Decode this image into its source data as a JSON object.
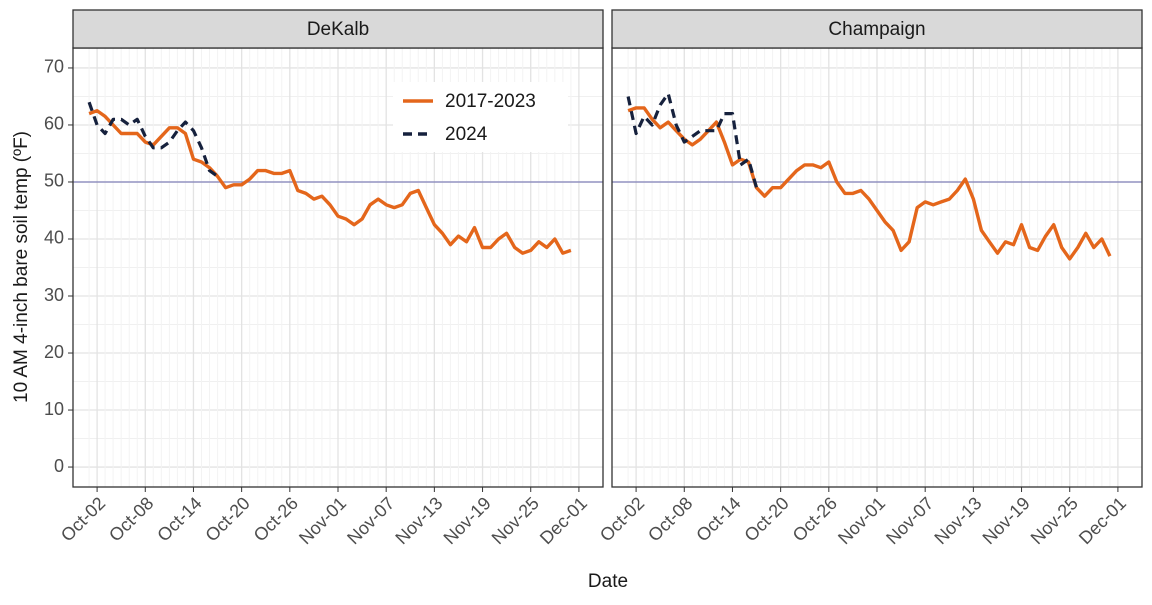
{
  "axis_labels": {
    "x": "Date",
    "y": "10 AM 4-inch bare soil temp (ºF)"
  },
  "chart_data": [
    {
      "type": "line",
      "title": "DeKalb",
      "x": [
        "Oct-01",
        "Oct-02",
        "Oct-03",
        "Oct-04",
        "Oct-05",
        "Oct-06",
        "Oct-07",
        "Oct-08",
        "Oct-09",
        "Oct-10",
        "Oct-11",
        "Oct-12",
        "Oct-13",
        "Oct-14",
        "Oct-15",
        "Oct-16",
        "Oct-17",
        "Oct-18",
        "Oct-19",
        "Oct-20",
        "Oct-21",
        "Oct-22",
        "Oct-23",
        "Oct-24",
        "Oct-25",
        "Oct-26",
        "Oct-27",
        "Oct-28",
        "Oct-29",
        "Oct-30",
        "Oct-31",
        "Nov-01",
        "Nov-02",
        "Nov-03",
        "Nov-04",
        "Nov-05",
        "Nov-06",
        "Nov-07",
        "Nov-08",
        "Nov-09",
        "Nov-10",
        "Nov-11",
        "Nov-12",
        "Nov-13",
        "Nov-14",
        "Nov-15",
        "Nov-16",
        "Nov-17",
        "Nov-18",
        "Nov-19",
        "Nov-20",
        "Nov-21",
        "Nov-22",
        "Nov-23",
        "Nov-24",
        "Nov-25",
        "Nov-26",
        "Nov-27",
        "Nov-28",
        "Nov-29",
        "Nov-30"
      ],
      "series": [
        {
          "name": "2017-2023",
          "color": "#e4661b",
          "dash": false,
          "values": [
            62,
            62.5,
            61.5,
            60,
            58.5,
            58.5,
            58.5,
            57,
            56.5,
            58,
            59.5,
            59.5,
            58.5,
            54,
            53.5,
            52.5,
            51,
            49,
            49.5,
            49.5,
            50.5,
            52,
            52,
            51.5,
            51.5,
            52,
            48.5,
            48,
            47,
            47.5,
            46,
            44,
            43.5,
            42.5,
            43.5,
            46,
            47,
            46,
            45.5,
            46,
            48,
            48.5,
            45.5,
            42.5,
            41,
            39,
            40.5,
            39.5,
            42,
            38.5,
            38.5,
            40,
            41,
            38.5,
            37.5,
            38,
            39.5,
            38.5,
            40,
            37.5,
            38
          ]
        },
        {
          "name": "2024",
          "color": "#16213d",
          "dash": true,
          "values": [
            64,
            60,
            58.5,
            61,
            61,
            60,
            61,
            58,
            56,
            56,
            57,
            59,
            60.5,
            59,
            56,
            52,
            51,
            null,
            null,
            null,
            null,
            null,
            null,
            null,
            null,
            null,
            null,
            null,
            null,
            null,
            null,
            null,
            null,
            null,
            null,
            null,
            null,
            null,
            null,
            null,
            null,
            null,
            null,
            null,
            null,
            null,
            null,
            null,
            null,
            null,
            null,
            null,
            null,
            null,
            null,
            null,
            null,
            null,
            null,
            null,
            null
          ]
        }
      ],
      "xlim": [
        "Sep-29",
        "Dec-04"
      ],
      "xticks": [
        "Oct-02",
        "Oct-08",
        "Oct-14",
        "Oct-20",
        "Oct-26",
        "Nov-01",
        "Nov-07",
        "Nov-13",
        "Nov-19",
        "Nov-25",
        "Dec-01"
      ],
      "ylim": [
        -3.5,
        73.5
      ],
      "yticks": [
        0,
        10,
        20,
        30,
        40,
        50,
        60,
        70
      ],
      "y_minor_ticks": [
        5,
        15,
        25,
        35,
        45,
        55,
        65
      ],
      "hline": 50,
      "hline_color": "#8080b8",
      "grid": true,
      "legend": "top-right"
    },
    {
      "type": "line",
      "title": "Champaign",
      "x": [
        "Oct-01",
        "Oct-02",
        "Oct-03",
        "Oct-04",
        "Oct-05",
        "Oct-06",
        "Oct-07",
        "Oct-08",
        "Oct-09",
        "Oct-10",
        "Oct-11",
        "Oct-12",
        "Oct-13",
        "Oct-14",
        "Oct-15",
        "Oct-16",
        "Oct-17",
        "Oct-18",
        "Oct-19",
        "Oct-20",
        "Oct-21",
        "Oct-22",
        "Oct-23",
        "Oct-24",
        "Oct-25",
        "Oct-26",
        "Oct-27",
        "Oct-28",
        "Oct-29",
        "Oct-30",
        "Oct-31",
        "Nov-01",
        "Nov-02",
        "Nov-03",
        "Nov-04",
        "Nov-05",
        "Nov-06",
        "Nov-07",
        "Nov-08",
        "Nov-09",
        "Nov-10",
        "Nov-11",
        "Nov-12",
        "Nov-13",
        "Nov-14",
        "Nov-15",
        "Nov-16",
        "Nov-17",
        "Nov-18",
        "Nov-19",
        "Nov-20",
        "Nov-21",
        "Nov-22",
        "Nov-23",
        "Nov-24",
        "Nov-25",
        "Nov-26",
        "Nov-27",
        "Nov-28",
        "Nov-29",
        "Nov-30"
      ],
      "series": [
        {
          "name": "2017-2023",
          "color": "#e4661b",
          "dash": false,
          "values": [
            62.5,
            63,
            63,
            61,
            59.5,
            60.5,
            59,
            57.5,
            56.5,
            57.5,
            59,
            60.5,
            57,
            53,
            54,
            53.5,
            49,
            47.5,
            49,
            49,
            50.5,
            52,
            53,
            53,
            52.5,
            53.5,
            50,
            48,
            48,
            48.5,
            47,
            45,
            43,
            41.5,
            38,
            39.5,
            45.5,
            46.5,
            46,
            46.5,
            47,
            48.5,
            50.5,
            47,
            41.5,
            39.5,
            37.5,
            39.5,
            39,
            42.5,
            38.5,
            38,
            40.5,
            42.5,
            38.5,
            36.5,
            38.5,
            41,
            38.5,
            40,
            37
          ]
        },
        {
          "name": "2024",
          "color": "#16213d",
          "dash": true,
          "values": [
            65,
            58.5,
            61.5,
            60,
            63.5,
            65.5,
            60,
            57,
            58,
            59,
            59,
            59,
            62,
            62,
            53,
            54,
            49,
            null,
            null,
            null,
            null,
            null,
            null,
            null,
            null,
            null,
            null,
            null,
            null,
            null,
            null,
            null,
            null,
            null,
            null,
            null,
            null,
            null,
            null,
            null,
            null,
            null,
            null,
            null,
            null,
            null,
            null,
            null,
            null,
            null,
            null,
            null,
            null,
            null,
            null,
            null,
            null,
            null,
            null,
            null,
            null
          ]
        }
      ],
      "xlim": [
        "Sep-29",
        "Dec-04"
      ],
      "xticks": [
        "Oct-02",
        "Oct-08",
        "Oct-14",
        "Oct-20",
        "Oct-26",
        "Nov-01",
        "Nov-07",
        "Nov-13",
        "Nov-19",
        "Nov-25",
        "Dec-01"
      ],
      "ylim": [
        -3.5,
        73.5
      ],
      "yticks": [
        0,
        10,
        20,
        30,
        40,
        50,
        60,
        70
      ],
      "y_minor_ticks": [
        5,
        15,
        25,
        35,
        45,
        55,
        65
      ],
      "hline": 50,
      "hline_color": "#8080b8",
      "grid": true,
      "legend": "none"
    }
  ]
}
